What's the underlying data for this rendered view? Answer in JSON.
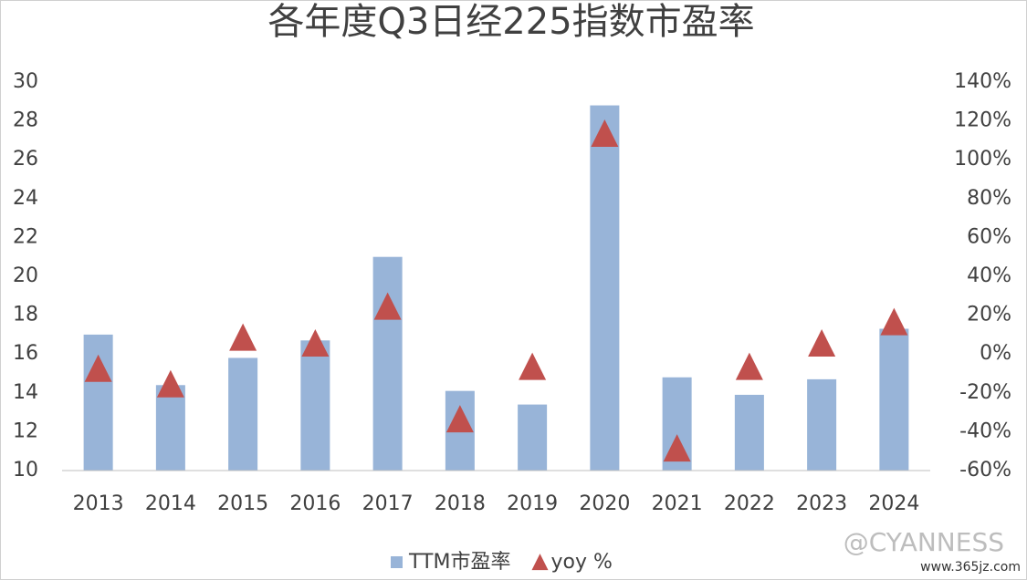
{
  "chart_data": {
    "type": "bar_triangle",
    "title": "各年度Q3日经225指数市盈率",
    "categories": [
      "2013",
      "2014",
      "2015",
      "2016",
      "2017",
      "2018",
      "2019",
      "2020",
      "2021",
      "2022",
      "2023",
      "2024"
    ],
    "series": [
      {
        "name": "TTM市盈率",
        "color": "#98b4d8",
        "type": "bar",
        "values": [
          17.0,
          14.4,
          15.8,
          16.7,
          21.0,
          14.1,
          13.4,
          28.8,
          14.8,
          13.9,
          14.7,
          17.3
        ]
      },
      {
        "name": "yoy %",
        "color": "#c0504d",
        "type": "triangle",
        "axis": "y2",
        "values": [
          -8,
          -16,
          8,
          5,
          24,
          -34,
          -7,
          113,
          -49,
          -7,
          5,
          16
        ]
      }
    ],
    "ylim": [
      10,
      30
    ],
    "yticks": [
      10,
      12,
      14,
      16,
      18,
      20,
      22,
      24,
      26,
      28,
      30
    ],
    "y2lim": [
      -60,
      140
    ],
    "y2ticks": [
      {
        "value": -60,
        "label": "-60%"
      },
      {
        "value": -40,
        "label": "-40%"
      },
      {
        "value": -20,
        "label": "-20%"
      },
      {
        "value": 0,
        "label": "0%"
      },
      {
        "value": 20,
        "label": "20%"
      },
      {
        "value": 40,
        "label": "40%"
      },
      {
        "value": 60,
        "label": "60%"
      },
      {
        "value": 80,
        "label": "80%"
      },
      {
        "value": 100,
        "label": "100%"
      },
      {
        "value": 120,
        "label": "120%"
      },
      {
        "value": 140,
        "label": "140%"
      }
    ],
    "legend": "bottom",
    "watermark": "@CYANNESS",
    "source": "www.365jz.com"
  }
}
